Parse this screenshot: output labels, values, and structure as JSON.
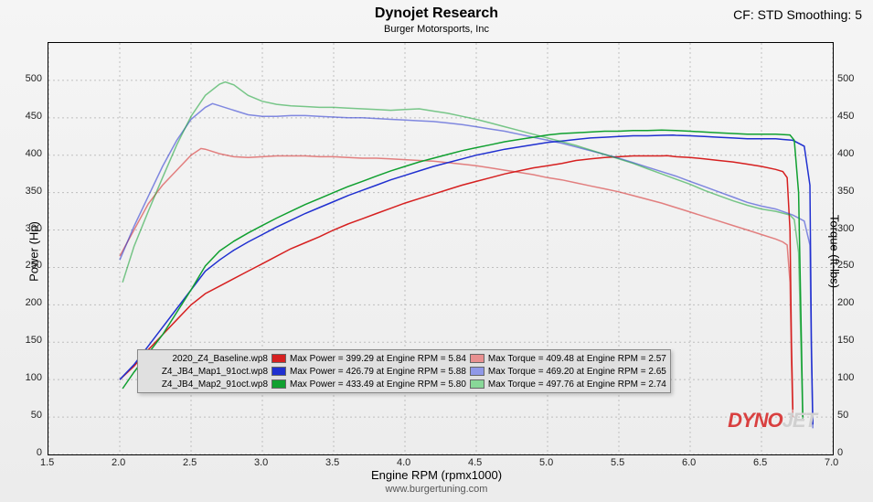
{
  "title": "Dynojet Research",
  "subtitle": "Burger Motorsports, Inc",
  "cf_text": "CF: STD Smoothing: 5",
  "axes": {
    "x_label": "Engine RPM (rpmx1000)",
    "y_left_label": "Power (Hp)",
    "y_right_label": "Torque (ft-lbs)",
    "xlim": [
      1.5,
      7.0
    ],
    "ylim": [
      0,
      550
    ],
    "x_ticks": [
      1.5,
      2.0,
      2.5,
      3.0,
      3.5,
      4.0,
      4.5,
      5.0,
      5.5,
      6.0,
      6.5,
      7.0
    ],
    "y_ticks": [
      0,
      50,
      100,
      150,
      200,
      250,
      300,
      350,
      400,
      450,
      500
    ],
    "grid_color": "#bfbfbf",
    "background": "#f2f2f2"
  },
  "footer": "www.burgertuning.com",
  "watermark": "DYNOJET",
  "series": [
    {
      "name": "baseline-power",
      "color": "#d62020",
      "dash": "none",
      "points": [
        [
          2.0,
          100
        ],
        [
          2.1,
          118
        ],
        [
          2.2,
          140
        ],
        [
          2.3,
          160
        ],
        [
          2.4,
          180
        ],
        [
          2.5,
          200
        ],
        [
          2.6,
          215
        ],
        [
          2.7,
          225
        ],
        [
          2.8,
          235
        ],
        [
          2.9,
          245
        ],
        [
          3.0,
          255
        ],
        [
          3.1,
          265
        ],
        [
          3.2,
          275
        ],
        [
          3.3,
          283
        ],
        [
          3.4,
          291
        ],
        [
          3.5,
          300
        ],
        [
          3.6,
          308
        ],
        [
          3.7,
          315
        ],
        [
          3.8,
          322
        ],
        [
          3.9,
          329
        ],
        [
          4.0,
          336
        ],
        [
          4.1,
          342
        ],
        [
          4.2,
          348
        ],
        [
          4.3,
          354
        ],
        [
          4.4,
          360
        ],
        [
          4.5,
          365
        ],
        [
          4.6,
          370
        ],
        [
          4.7,
          375
        ],
        [
          4.8,
          379
        ],
        [
          4.9,
          383
        ],
        [
          5.0,
          386
        ],
        [
          5.1,
          389
        ],
        [
          5.2,
          393
        ],
        [
          5.3,
          395
        ],
        [
          5.4,
          397
        ],
        [
          5.5,
          398
        ],
        [
          5.6,
          399
        ],
        [
          5.7,
          399
        ],
        [
          5.8,
          399
        ],
        [
          5.84,
          399.29
        ],
        [
          5.9,
          398
        ],
        [
          6.0,
          397
        ],
        [
          6.1,
          395
        ],
        [
          6.2,
          393
        ],
        [
          6.3,
          391
        ],
        [
          6.4,
          388
        ],
        [
          6.5,
          385
        ],
        [
          6.6,
          381
        ],
        [
          6.65,
          378
        ],
        [
          6.68,
          370
        ],
        [
          6.7,
          300
        ],
        [
          6.71,
          150
        ],
        [
          6.72,
          60
        ]
      ]
    },
    {
      "name": "baseline-torque",
      "color": "#d62020",
      "dash": "none",
      "opacity": 0.55,
      "points": [
        [
          2.0,
          265
        ],
        [
          2.1,
          300
        ],
        [
          2.2,
          335
        ],
        [
          2.3,
          360
        ],
        [
          2.4,
          380
        ],
        [
          2.5,
          400
        ],
        [
          2.57,
          409
        ],
        [
          2.6,
          408
        ],
        [
          2.7,
          402
        ],
        [
          2.8,
          398
        ],
        [
          2.9,
          397
        ],
        [
          3.0,
          398
        ],
        [
          3.1,
          399
        ],
        [
          3.2,
          399
        ],
        [
          3.3,
          399
        ],
        [
          3.4,
          398
        ],
        [
          3.5,
          398
        ],
        [
          3.6,
          397
        ],
        [
          3.7,
          396
        ],
        [
          3.8,
          396
        ],
        [
          3.9,
          395
        ],
        [
          4.0,
          394
        ],
        [
          4.1,
          393
        ],
        [
          4.2,
          392
        ],
        [
          4.3,
          390
        ],
        [
          4.4,
          388
        ],
        [
          4.5,
          386
        ],
        [
          4.6,
          383
        ],
        [
          4.7,
          380
        ],
        [
          4.8,
          377
        ],
        [
          4.9,
          374
        ],
        [
          5.0,
          370
        ],
        [
          5.1,
          367
        ],
        [
          5.2,
          363
        ],
        [
          5.3,
          359
        ],
        [
          5.4,
          355
        ],
        [
          5.5,
          351
        ],
        [
          5.6,
          346
        ],
        [
          5.7,
          341
        ],
        [
          5.8,
          336
        ],
        [
          5.9,
          330
        ],
        [
          6.0,
          324
        ],
        [
          6.1,
          318
        ],
        [
          6.2,
          312
        ],
        [
          6.3,
          306
        ],
        [
          6.4,
          300
        ],
        [
          6.5,
          294
        ],
        [
          6.6,
          288
        ],
        [
          6.65,
          284
        ],
        [
          6.68,
          280
        ],
        [
          6.7,
          230
        ],
        [
          6.71,
          120
        ],
        [
          6.72,
          50
        ]
      ]
    },
    {
      "name": "map1-power",
      "color": "#2030d0",
      "dash": "none",
      "points": [
        [
          2.0,
          100
        ],
        [
          2.1,
          120
        ],
        [
          2.2,
          145
        ],
        [
          2.3,
          170
        ],
        [
          2.4,
          195
        ],
        [
          2.5,
          220
        ],
        [
          2.6,
          245
        ],
        [
          2.7,
          260
        ],
        [
          2.8,
          273
        ],
        [
          2.9,
          284
        ],
        [
          3.0,
          294
        ],
        [
          3.1,
          304
        ],
        [
          3.2,
          313
        ],
        [
          3.3,
          322
        ],
        [
          3.4,
          330
        ],
        [
          3.5,
          338
        ],
        [
          3.6,
          346
        ],
        [
          3.7,
          353
        ],
        [
          3.8,
          360
        ],
        [
          3.9,
          367
        ],
        [
          4.0,
          373
        ],
        [
          4.1,
          379
        ],
        [
          4.2,
          385
        ],
        [
          4.3,
          390
        ],
        [
          4.4,
          395
        ],
        [
          4.5,
          400
        ],
        [
          4.6,
          404
        ],
        [
          4.7,
          408
        ],
        [
          4.8,
          411
        ],
        [
          4.9,
          414
        ],
        [
          5.0,
          417
        ],
        [
          5.1,
          419
        ],
        [
          5.2,
          421
        ],
        [
          5.3,
          423
        ],
        [
          5.4,
          424
        ],
        [
          5.5,
          425
        ],
        [
          5.6,
          426
        ],
        [
          5.7,
          426
        ],
        [
          5.8,
          426.5
        ],
        [
          5.88,
          426.79
        ],
        [
          5.9,
          426.5
        ],
        [
          6.0,
          426
        ],
        [
          6.1,
          425
        ],
        [
          6.2,
          424
        ],
        [
          6.3,
          423
        ],
        [
          6.4,
          422
        ],
        [
          6.5,
          422
        ],
        [
          6.6,
          422
        ],
        [
          6.65,
          421
        ],
        [
          6.72,
          420
        ],
        [
          6.8,
          412
        ],
        [
          6.84,
          360
        ],
        [
          6.85,
          150
        ],
        [
          6.86,
          40
        ]
      ]
    },
    {
      "name": "map1-torque",
      "color": "#2030d0",
      "dash": "none",
      "opacity": 0.55,
      "points": [
        [
          2.0,
          260
        ],
        [
          2.1,
          305
        ],
        [
          2.2,
          345
        ],
        [
          2.3,
          385
        ],
        [
          2.4,
          420
        ],
        [
          2.5,
          448
        ],
        [
          2.6,
          464
        ],
        [
          2.65,
          469
        ],
        [
          2.7,
          466
        ],
        [
          2.8,
          460
        ],
        [
          2.9,
          454
        ],
        [
          3.0,
          452
        ],
        [
          3.1,
          452
        ],
        [
          3.2,
          453
        ],
        [
          3.3,
          453
        ],
        [
          3.4,
          452
        ],
        [
          3.5,
          451
        ],
        [
          3.6,
          450
        ],
        [
          3.7,
          450
        ],
        [
          3.8,
          449
        ],
        [
          3.9,
          448
        ],
        [
          4.0,
          447
        ],
        [
          4.1,
          446
        ],
        [
          4.2,
          445
        ],
        [
          4.3,
          443
        ],
        [
          4.4,
          441
        ],
        [
          4.5,
          438
        ],
        [
          4.6,
          435
        ],
        [
          4.7,
          432
        ],
        [
          4.8,
          428
        ],
        [
          4.9,
          424
        ],
        [
          5.0,
          420
        ],
        [
          5.1,
          416
        ],
        [
          5.2,
          411
        ],
        [
          5.3,
          406
        ],
        [
          5.4,
          401
        ],
        [
          5.5,
          396
        ],
        [
          5.6,
          390
        ],
        [
          5.7,
          384
        ],
        [
          5.8,
          378
        ],
        [
          5.9,
          372
        ],
        [
          6.0,
          365
        ],
        [
          6.1,
          358
        ],
        [
          6.2,
          351
        ],
        [
          6.3,
          344
        ],
        [
          6.4,
          337
        ],
        [
          6.5,
          332
        ],
        [
          6.6,
          328
        ],
        [
          6.72,
          320
        ],
        [
          6.8,
          312
        ],
        [
          6.84,
          280
        ],
        [
          6.85,
          130
        ],
        [
          6.86,
          35
        ]
      ]
    },
    {
      "name": "map2-power",
      "color": "#10a030",
      "dash": "none",
      "points": [
        [
          2.02,
          88
        ],
        [
          2.1,
          110
        ],
        [
          2.2,
          135
        ],
        [
          2.3,
          160
        ],
        [
          2.4,
          190
        ],
        [
          2.5,
          220
        ],
        [
          2.6,
          252
        ],
        [
          2.7,
          272
        ],
        [
          2.8,
          285
        ],
        [
          2.9,
          296
        ],
        [
          3.0,
          306
        ],
        [
          3.1,
          316
        ],
        [
          3.2,
          325
        ],
        [
          3.3,
          334
        ],
        [
          3.4,
          342
        ],
        [
          3.5,
          350
        ],
        [
          3.6,
          358
        ],
        [
          3.7,
          365
        ],
        [
          3.8,
          372
        ],
        [
          3.9,
          379
        ],
        [
          4.0,
          385
        ],
        [
          4.1,
          391
        ],
        [
          4.2,
          396
        ],
        [
          4.3,
          401
        ],
        [
          4.4,
          406
        ],
        [
          4.5,
          410
        ],
        [
          4.6,
          414
        ],
        [
          4.7,
          418
        ],
        [
          4.8,
          421
        ],
        [
          4.9,
          424
        ],
        [
          5.0,
          427
        ],
        [
          5.1,
          429
        ],
        [
          5.2,
          430
        ],
        [
          5.3,
          431
        ],
        [
          5.4,
          432
        ],
        [
          5.5,
          432
        ],
        [
          5.6,
          433
        ],
        [
          5.7,
          433
        ],
        [
          5.8,
          433.49
        ],
        [
          5.9,
          433
        ],
        [
          6.0,
          432
        ],
        [
          6.1,
          431
        ],
        [
          6.2,
          430
        ],
        [
          6.3,
          429
        ],
        [
          6.4,
          428
        ],
        [
          6.5,
          428
        ],
        [
          6.6,
          428
        ],
        [
          6.7,
          427
        ],
        [
          6.73,
          420
        ],
        [
          6.76,
          350
        ],
        [
          6.78,
          150
        ],
        [
          6.79,
          50
        ]
      ]
    },
    {
      "name": "map2-torque",
      "color": "#10a030",
      "dash": "none",
      "opacity": 0.55,
      "points": [
        [
          2.02,
          230
        ],
        [
          2.1,
          278
        ],
        [
          2.2,
          325
        ],
        [
          2.3,
          370
        ],
        [
          2.4,
          414
        ],
        [
          2.5,
          452
        ],
        [
          2.6,
          480
        ],
        [
          2.7,
          495
        ],
        [
          2.74,
          497.76
        ],
        [
          2.8,
          494
        ],
        [
          2.9,
          480
        ],
        [
          3.0,
          472
        ],
        [
          3.1,
          468
        ],
        [
          3.2,
          466
        ],
        [
          3.3,
          465
        ],
        [
          3.4,
          464
        ],
        [
          3.5,
          464
        ],
        [
          3.6,
          463
        ],
        [
          3.7,
          462
        ],
        [
          3.8,
          461
        ],
        [
          3.9,
          460
        ],
        [
          4.0,
          461
        ],
        [
          4.1,
          462
        ],
        [
          4.2,
          459
        ],
        [
          4.3,
          456
        ],
        [
          4.4,
          452
        ],
        [
          4.5,
          448
        ],
        [
          4.6,
          443
        ],
        [
          4.7,
          438
        ],
        [
          4.8,
          433
        ],
        [
          4.9,
          428
        ],
        [
          5.0,
          423
        ],
        [
          5.1,
          418
        ],
        [
          5.2,
          413
        ],
        [
          5.3,
          407
        ],
        [
          5.4,
          401
        ],
        [
          5.5,
          395
        ],
        [
          5.6,
          389
        ],
        [
          5.7,
          382
        ],
        [
          5.8,
          375
        ],
        [
          5.9,
          368
        ],
        [
          6.0,
          361
        ],
        [
          6.1,
          353
        ],
        [
          6.2,
          346
        ],
        [
          6.3,
          339
        ],
        [
          6.4,
          333
        ],
        [
          6.5,
          328
        ],
        [
          6.6,
          325
        ],
        [
          6.7,
          320
        ],
        [
          6.73,
          314
        ],
        [
          6.76,
          270
        ],
        [
          6.78,
          120
        ],
        [
          6.79,
          45
        ]
      ]
    }
  ],
  "legend": {
    "rows": [
      {
        "file": "2020_Z4_Baseline.wp8",
        "power_color": "#d62020",
        "power_text": "Max Power = 399.29 at Engine RPM = 5.84",
        "torque_color": "#e89090",
        "torque_text": "Max Torque = 409.48 at Engine RPM = 2.57"
      },
      {
        "file": "Z4_JB4_Map1_91oct.wp8",
        "power_color": "#2030d0",
        "power_text": "Max Power = 426.79 at Engine RPM = 5.88",
        "torque_color": "#9098e8",
        "torque_text": "Max Torque = 469.20 at Engine RPM = 2.65"
      },
      {
        "file": "Z4_JB4_Map2_91oct.wp8",
        "power_color": "#10a030",
        "power_text": "Max Power = 433.49 at Engine RPM = 5.80",
        "torque_color": "#88d898",
        "torque_text": "Max Torque = 497.76 at Engine RPM = 2.74"
      }
    ]
  }
}
